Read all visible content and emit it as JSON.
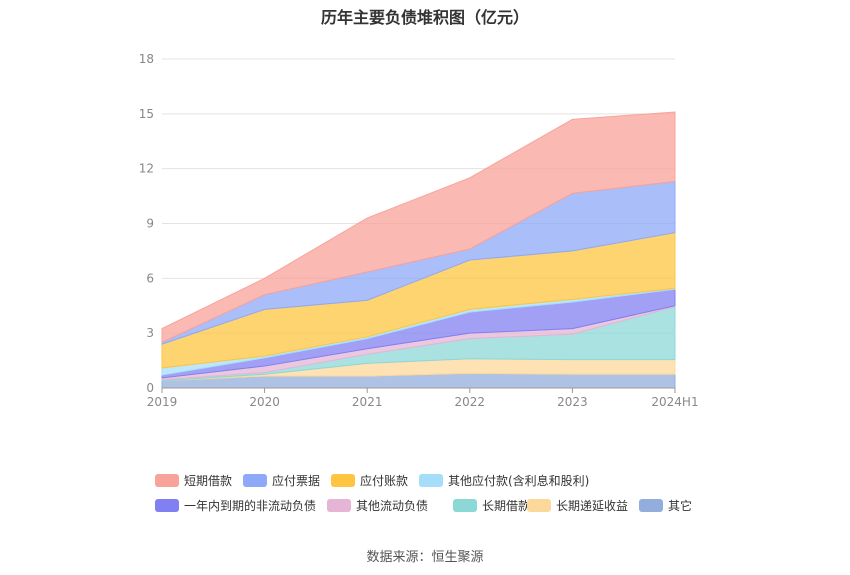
{
  "chart_data": {
    "type": "area",
    "stacked": true,
    "title": "历年主要负债堆积图（亿元）",
    "categories": [
      "2019",
      "2020",
      "2021",
      "2022",
      "2023",
      "2024H1"
    ],
    "yticks": [
      0,
      3,
      6,
      9,
      12,
      15,
      18
    ],
    "ylim": [
      0,
      18
    ],
    "grid": true,
    "legend_position": "bottom",
    "series": [
      {
        "name": "其它",
        "color": "#93aedd",
        "values": [
          0.4,
          0.65,
          0.65,
          0.8,
          0.75,
          0.75
        ]
      },
      {
        "name": "长期递延收益",
        "color": "#fdd89b",
        "values": [
          0.0,
          0.1,
          0.7,
          0.8,
          0.8,
          0.8
        ]
      },
      {
        "name": "长期借款",
        "color": "#8cd8d7",
        "values": [
          0.05,
          0.1,
          0.5,
          1.1,
          1.4,
          2.9
        ]
      },
      {
        "name": "其他流动负债",
        "color": "#e6b5d6",
        "values": [
          0.1,
          0.35,
          0.3,
          0.3,
          0.3,
          0.05
        ]
      },
      {
        "name": "一年内到期的非流动负债",
        "color": "#8180f2",
        "values": [
          0.15,
          0.45,
          0.55,
          1.15,
          1.45,
          0.9
        ]
      },
      {
        "name": "其他应付款(含利息和股利)",
        "color": "#a5def9",
        "values": [
          0.4,
          0.1,
          0.1,
          0.15,
          0.15,
          0.05
        ]
      },
      {
        "name": "应付账款",
        "color": "#fdc542",
        "values": [
          1.3,
          2.55,
          2.0,
          2.7,
          2.65,
          3.05
        ]
      },
      {
        "name": "应付票据",
        "color": "#8ea9f8",
        "values": [
          0.1,
          0.8,
          1.55,
          0.6,
          3.15,
          2.8
        ]
      },
      {
        "name": "短期借款",
        "color": "#f8a399",
        "values": [
          0.75,
          0.9,
          2.95,
          3.9,
          4.05,
          3.8
        ]
      }
    ]
  },
  "legend_order": [
    "短期借款",
    "应付票据",
    "应付账款",
    "其他应付款(含利息和股利)",
    "一年内到期的非流动负债",
    "其他流动负债",
    "长期借款",
    "长期递延收益",
    "其它"
  ],
  "source": "数据来源：恒生聚源"
}
